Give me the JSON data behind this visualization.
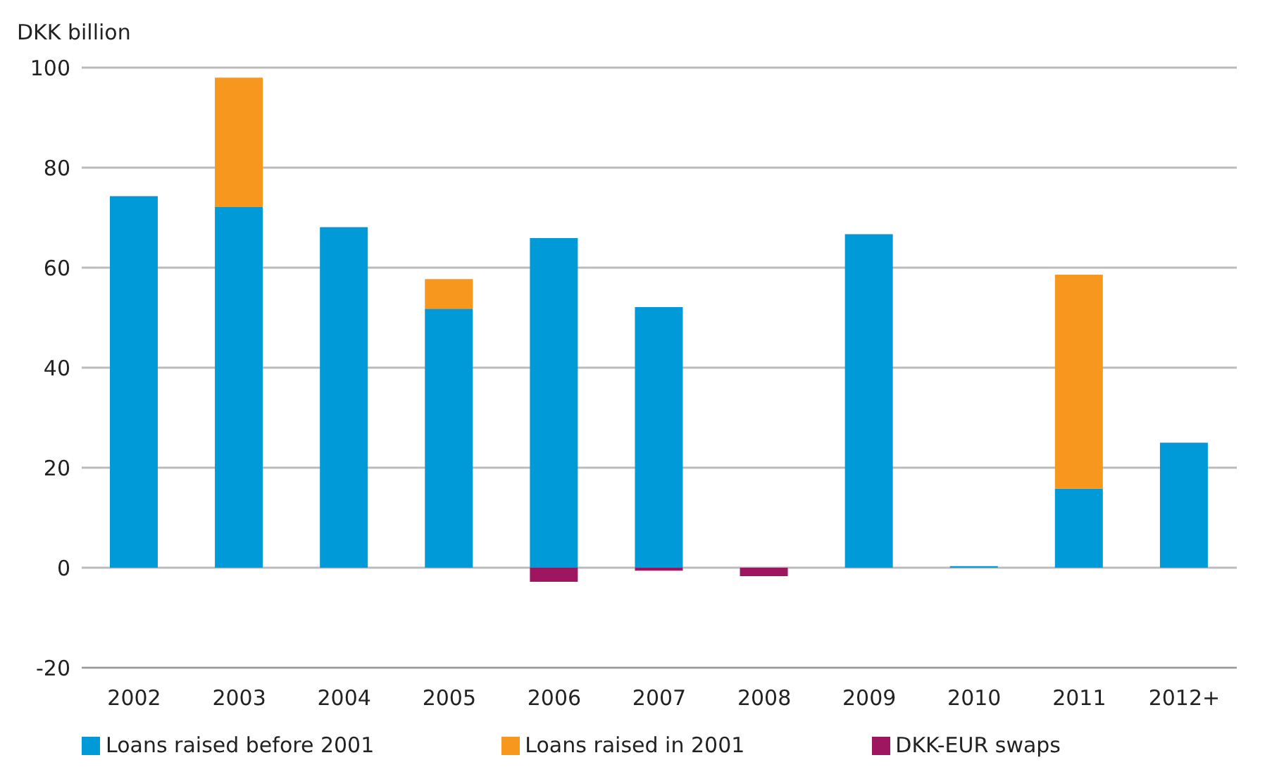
{
  "chart_data": {
    "type": "bar",
    "ylabel": "DKK billion",
    "stacked": true,
    "categories": [
      "2002",
      "2003",
      "2004",
      "2005",
      "2006",
      "2007",
      "2008",
      "2009",
      "2010",
      "2011",
      "2012+"
    ],
    "series": [
      {
        "name": "Loans raised before 2001",
        "color": "#009ad8",
        "values": [
          74.3,
          72.1,
          68.1,
          51.8,
          65.9,
          52.1,
          null,
          66.7,
          0.3,
          15.8,
          25.0
        ]
      },
      {
        "name": "Loans raised in 2001",
        "color": "#f7971e",
        "values": [
          null,
          25.9,
          null,
          5.9,
          null,
          null,
          null,
          null,
          null,
          42.8,
          null
        ]
      },
      {
        "name": "DKK-EUR swaps",
        "color": "#9e1660",
        "values": [
          null,
          null,
          null,
          null,
          -2.8,
          -0.6,
          -1.7,
          null,
          null,
          null,
          null
        ]
      }
    ],
    "ylim": [
      -20,
      100
    ],
    "yticks": [
      -20,
      0,
      20,
      40,
      60,
      80,
      100
    ],
    "grid": "y",
    "legend": "bottom"
  }
}
